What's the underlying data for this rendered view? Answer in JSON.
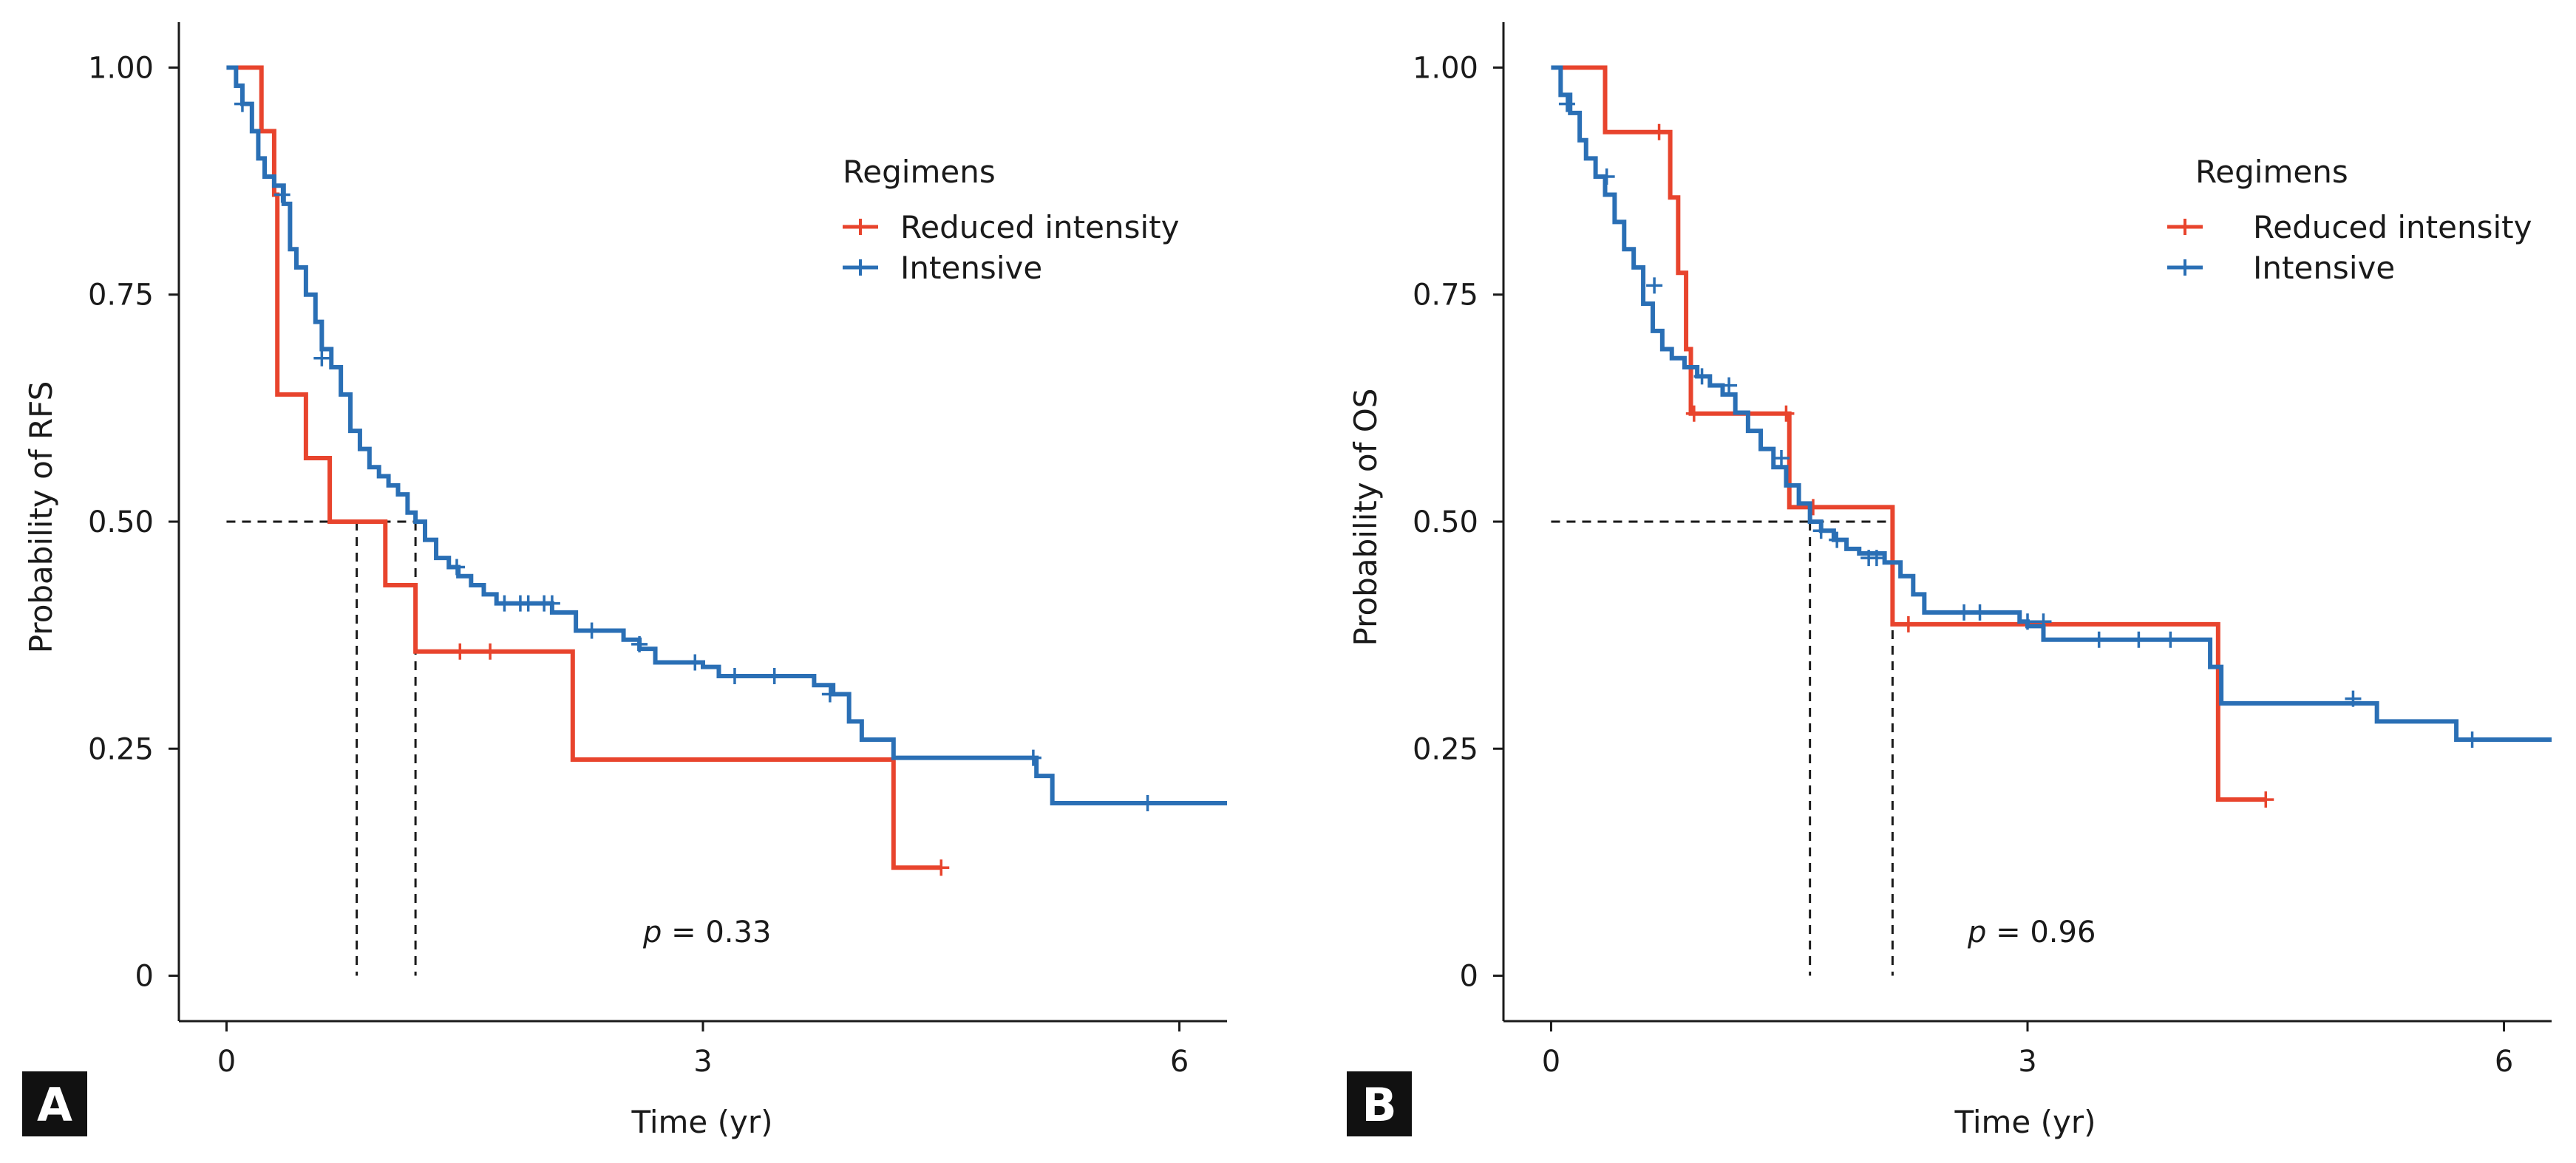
{
  "figure": {
    "panel_labels": [
      "A",
      "B"
    ]
  },
  "colors": {
    "reduced": "#e8442d",
    "intensive": "#2a6fb5",
    "axis": "#1a1a1a",
    "reference": "#1a1a1a",
    "tag_bg": "#111111"
  },
  "chart_data": [
    {
      "type": "line",
      "subtype": "kaplan-meier",
      "panel": "A",
      "xlabel": "Time (yr)",
      "ylabel": "Probability of RFS",
      "x_ticks": [
        "0",
        "3",
        "6"
      ],
      "x_tick_values": [
        0,
        3,
        6
      ],
      "y_ticks": [
        "0",
        "0.25",
        "0.50",
        "0.75",
        "1.00"
      ],
      "y_tick_values": [
        0,
        0.25,
        0.5,
        0.75,
        1.0
      ],
      "xlim": [
        -0.3,
        6.3
      ],
      "ylim": [
        -0.05,
        1.05
      ],
      "legend_title": "Regimens",
      "legend_position": "top-right",
      "annotation": {
        "prefix": "p",
        "text": " = 0.33",
        "x": 3.0,
        "y": 0.04
      },
      "median_reference": {
        "y": 0.5,
        "x": [
          0.82,
          1.19
        ]
      },
      "series": [
        {
          "name": "Reduced intensity",
          "color_key": "reduced",
          "steps": [
            [
              0,
              1.0
            ],
            [
              0.22,
              0.93
            ],
            [
              0.3,
              0.86
            ],
            [
              0.32,
              0.64
            ],
            [
              0.5,
              0.57
            ],
            [
              0.65,
              0.5
            ],
            [
              1.0,
              0.43
            ],
            [
              1.19,
              0.357
            ],
            [
              2.18,
              0.238
            ],
            [
              4.2,
              0.119
            ],
            [
              4.5,
              0.119
            ]
          ],
          "censor": [
            [
              1.47,
              0.357
            ],
            [
              1.66,
              0.357
            ],
            [
              4.5,
              0.119
            ]
          ]
        },
        {
          "name": "Intensive",
          "color_key": "intensive",
          "steps": [
            [
              0,
              1.0
            ],
            [
              0.06,
              0.98
            ],
            [
              0.1,
              0.96
            ],
            [
              0.16,
              0.93
            ],
            [
              0.2,
              0.9
            ],
            [
              0.24,
              0.88
            ],
            [
              0.3,
              0.87
            ],
            [
              0.36,
              0.85
            ],
            [
              0.4,
              0.8
            ],
            [
              0.44,
              0.78
            ],
            [
              0.5,
              0.75
            ],
            [
              0.56,
              0.72
            ],
            [
              0.6,
              0.69
            ],
            [
              0.66,
              0.67
            ],
            [
              0.72,
              0.64
            ],
            [
              0.78,
              0.6
            ],
            [
              0.84,
              0.58
            ],
            [
              0.9,
              0.56
            ],
            [
              0.96,
              0.55
            ],
            [
              1.02,
              0.54
            ],
            [
              1.08,
              0.53
            ],
            [
              1.14,
              0.51
            ],
            [
              1.19,
              0.5
            ],
            [
              1.25,
              0.48
            ],
            [
              1.32,
              0.46
            ],
            [
              1.4,
              0.45
            ],
            [
              1.46,
              0.44
            ],
            [
              1.54,
              0.43
            ],
            [
              1.62,
              0.42
            ],
            [
              1.7,
              0.41
            ],
            [
              2.05,
              0.4
            ],
            [
              2.2,
              0.38
            ],
            [
              2.5,
              0.37
            ],
            [
              2.6,
              0.36
            ],
            [
              2.7,
              0.345
            ],
            [
              3.0,
              0.34
            ],
            [
              3.1,
              0.33
            ],
            [
              3.7,
              0.32
            ],
            [
              3.82,
              0.31
            ],
            [
              3.92,
              0.28
            ],
            [
              4.0,
              0.26
            ],
            [
              4.2,
              0.24
            ],
            [
              5.1,
              0.22
            ],
            [
              5.2,
              0.19
            ],
            [
              6.3,
              0.19
            ]
          ],
          "censor": [
            [
              0.1,
              0.96
            ],
            [
              0.35,
              0.86
            ],
            [
              0.6,
              0.68
            ],
            [
              1.45,
              0.45
            ],
            [
              1.75,
              0.41
            ],
            [
              1.85,
              0.41
            ],
            [
              1.9,
              0.41
            ],
            [
              2.0,
              0.41
            ],
            [
              2.05,
              0.41
            ],
            [
              2.3,
              0.38
            ],
            [
              2.6,
              0.365
            ],
            [
              2.95,
              0.345
            ],
            [
              3.2,
              0.33
            ],
            [
              3.45,
              0.33
            ],
            [
              3.8,
              0.31
            ],
            [
              5.08,
              0.24
            ],
            [
              5.8,
              0.19
            ]
          ]
        }
      ]
    },
    {
      "type": "line",
      "subtype": "kaplan-meier",
      "panel": "B",
      "xlabel": "Time (yr)",
      "ylabel": "Probability of OS",
      "x_ticks": [
        "0",
        "3",
        "6"
      ],
      "x_tick_values": [
        0,
        3,
        6
      ],
      "y_ticks": [
        "0",
        "0.25",
        "0.50",
        "0.75",
        "1.00"
      ],
      "y_tick_values": [
        0,
        0.25,
        0.5,
        0.75,
        1.0
      ],
      "xlim": [
        -0.3,
        6.3
      ],
      "ylim": [
        -0.05,
        1.05
      ],
      "legend_title": "Regimens",
      "legend_position": "top-right",
      "annotation": {
        "prefix": "p",
        "text": " = 0.96",
        "x": 3.0,
        "y": 0.04
      },
      "median_reference": {
        "y": 0.5,
        "x": [
          1.63,
          2.15
        ]
      },
      "series": [
        {
          "name": "Reduced intensity",
          "color_key": "reduced",
          "steps": [
            [
              0,
              1.0
            ],
            [
              0.34,
              0.929
            ],
            [
              0.75,
              0.857
            ],
            [
              0.8,
              0.774
            ],
            [
              0.85,
              0.69
            ],
            [
              0.88,
              0.619
            ],
            [
              1.5,
              0.516
            ],
            [
              2.15,
              0.387
            ],
            [
              4.2,
              0.194
            ],
            [
              4.5,
              0.194
            ]
          ],
          "censor": [
            [
              0.68,
              0.929
            ],
            [
              0.9,
              0.619
            ],
            [
              1.48,
              0.619
            ],
            [
              1.65,
              0.516
            ],
            [
              2.25,
              0.387
            ],
            [
              4.5,
              0.194
            ]
          ]
        },
        {
          "name": "Intensive",
          "color_key": "intensive",
          "steps": [
            [
              0,
              1.0
            ],
            [
              0.06,
              0.97
            ],
            [
              0.12,
              0.95
            ],
            [
              0.18,
              0.92
            ],
            [
              0.22,
              0.9
            ],
            [
              0.28,
              0.88
            ],
            [
              0.34,
              0.86
            ],
            [
              0.4,
              0.83
            ],
            [
              0.46,
              0.8
            ],
            [
              0.52,
              0.78
            ],
            [
              0.58,
              0.74
            ],
            [
              0.64,
              0.71
            ],
            [
              0.7,
              0.69
            ],
            [
              0.76,
              0.68
            ],
            [
              0.84,
              0.67
            ],
            [
              0.92,
              0.66
            ],
            [
              1.0,
              0.65
            ],
            [
              1.08,
              0.64
            ],
            [
              1.16,
              0.62
            ],
            [
              1.24,
              0.6
            ],
            [
              1.32,
              0.58
            ],
            [
              1.4,
              0.56
            ],
            [
              1.48,
              0.54
            ],
            [
              1.56,
              0.52
            ],
            [
              1.63,
              0.5
            ],
            [
              1.7,
              0.49
            ],
            [
              1.78,
              0.48
            ],
            [
              1.86,
              0.47
            ],
            [
              1.94,
              0.465
            ],
            [
              2.1,
              0.455
            ],
            [
              2.2,
              0.44
            ],
            [
              2.28,
              0.42
            ],
            [
              2.35,
              0.4
            ],
            [
              2.95,
              0.39
            ],
            [
              3.0,
              0.385
            ],
            [
              3.1,
              0.37
            ],
            [
              4.15,
              0.34
            ],
            [
              4.22,
              0.3
            ],
            [
              5.2,
              0.28
            ],
            [
              5.7,
              0.26
            ],
            [
              6.3,
              0.26
            ]
          ],
          "censor": [
            [
              0.1,
              0.96
            ],
            [
              0.35,
              0.88
            ],
            [
              0.65,
              0.76
            ],
            [
              0.95,
              0.66
            ],
            [
              1.12,
              0.65
            ],
            [
              1.45,
              0.57
            ],
            [
              1.7,
              0.49
            ],
            [
              1.8,
              0.48
            ],
            [
              2.0,
              0.46
            ],
            [
              2.05,
              0.46
            ],
            [
              2.6,
              0.4
            ],
            [
              2.7,
              0.4
            ],
            [
              3.0,
              0.39
            ],
            [
              3.1,
              0.39
            ],
            [
              3.45,
              0.37
            ],
            [
              3.7,
              0.37
            ],
            [
              3.9,
              0.37
            ],
            [
              5.05,
              0.305
            ],
            [
              5.8,
              0.26
            ]
          ]
        }
      ]
    }
  ]
}
